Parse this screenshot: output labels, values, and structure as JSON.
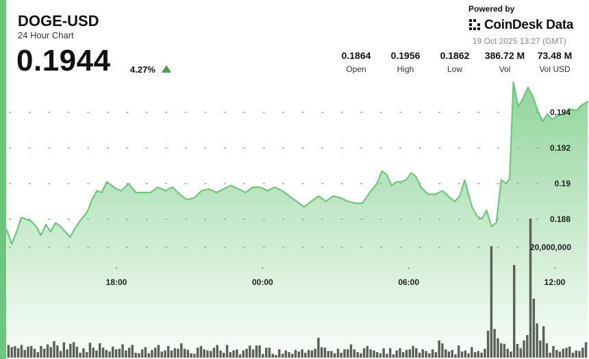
{
  "header": {
    "ticker": "DOGE-USD",
    "subtitle": "24 Hour Chart",
    "price": "0.1944",
    "change": "4.27%",
    "change_direction": "up"
  },
  "brand": {
    "powered_by": "Powered by",
    "name": "CoinDesk Data",
    "datetime": "19 Oct 2025 13:27 (GMT)"
  },
  "stats": [
    {
      "value": "0.1864",
      "label": "Open"
    },
    {
      "value": "0.1956",
      "label": "High"
    },
    {
      "value": "0.1862",
      "label": "Low"
    },
    {
      "value": "386.72 M",
      "label": "Vol"
    },
    {
      "value": "73.48 M",
      "label": "Vol USD"
    }
  ],
  "colors": {
    "accent": "#6cc77a",
    "line": "#6cc77a",
    "up": "#3fa34d",
    "volume": "#5a6157"
  },
  "chart_data": {
    "type": "line",
    "x_ticks": [
      "18:00",
      "00:00",
      "06:00",
      "12:00"
    ],
    "x_tick_hours": [
      18,
      24,
      30,
      36
    ],
    "x_range_hours": [
      13.5,
      37.35
    ],
    "y_ticks": [
      "0.194",
      "0.192",
      "0.19",
      "0.188"
    ],
    "y_tick_values": [
      0.194,
      0.192,
      0.19,
      0.188
    ],
    "ylim": [
      0.1858,
      0.1962
    ],
    "volume_label": "20,000,000",
    "volume_label_value": 20000000,
    "volume_max": 26000000,
    "grid": "dotted-horizontal",
    "series": [
      {
        "points": [
          [
            13.5,
            0.1874
          ],
          [
            13.7,
            0.1866
          ],
          [
            13.9,
            0.1873
          ],
          [
            14.1,
            0.1881
          ],
          [
            14.3,
            0.188
          ],
          [
            14.5,
            0.1879
          ],
          [
            14.7,
            0.1876
          ],
          [
            14.9,
            0.1871
          ],
          [
            15.1,
            0.1877
          ],
          [
            15.3,
            0.1873
          ],
          [
            15.5,
            0.1878
          ],
          [
            15.7,
            0.1876
          ],
          [
            15.9,
            0.1873
          ],
          [
            16.1,
            0.187
          ],
          [
            16.3,
            0.1875
          ],
          [
            16.5,
            0.1879
          ],
          [
            16.8,
            0.1884
          ],
          [
            17.0,
            0.1891
          ],
          [
            17.2,
            0.1896
          ],
          [
            17.4,
            0.1895
          ],
          [
            17.6,
            0.1901
          ],
          [
            17.8,
            0.1899
          ],
          [
            18.0,
            0.1897
          ],
          [
            18.2,
            0.1896
          ],
          [
            18.5,
            0.19
          ],
          [
            18.8,
            0.1895
          ],
          [
            19.1,
            0.1895
          ],
          [
            19.4,
            0.1895
          ],
          [
            19.7,
            0.1898
          ],
          [
            20.0,
            0.1896
          ],
          [
            20.3,
            0.1898
          ],
          [
            20.6,
            0.1894
          ],
          [
            20.9,
            0.1891
          ],
          [
            21.2,
            0.1892
          ],
          [
            21.5,
            0.1896
          ],
          [
            21.8,
            0.1897
          ],
          [
            22.1,
            0.1895
          ],
          [
            22.4,
            0.1897
          ],
          [
            22.7,
            0.1899
          ],
          [
            23.0,
            0.1897
          ],
          [
            23.3,
            0.1895
          ],
          [
            23.6,
            0.1898
          ],
          [
            23.9,
            0.1898
          ],
          [
            24.2,
            0.1896
          ],
          [
            24.5,
            0.1898
          ],
          [
            24.8,
            0.1896
          ],
          [
            25.1,
            0.1893
          ],
          [
            25.4,
            0.189
          ],
          [
            25.7,
            0.1887
          ],
          [
            26.0,
            0.189
          ],
          [
            26.3,
            0.1893
          ],
          [
            26.6,
            0.189
          ],
          [
            26.9,
            0.1893
          ],
          [
            27.2,
            0.1892
          ],
          [
            27.5,
            0.189
          ],
          [
            27.8,
            0.1889
          ],
          [
            28.1,
            0.1889
          ],
          [
            28.4,
            0.1895
          ],
          [
            28.7,
            0.19
          ],
          [
            28.9,
            0.1907
          ],
          [
            29.1,
            0.1905
          ],
          [
            29.3,
            0.1899
          ],
          [
            29.5,
            0.1901
          ],
          [
            29.7,
            0.1901
          ],
          [
            29.9,
            0.1902
          ],
          [
            30.1,
            0.1906
          ],
          [
            30.3,
            0.1904
          ],
          [
            30.5,
            0.1898
          ],
          [
            30.8,
            0.1894
          ],
          [
            31.1,
            0.1894
          ],
          [
            31.4,
            0.1896
          ],
          [
            31.7,
            0.1892
          ],
          [
            31.9,
            0.189
          ],
          [
            32.1,
            0.1893
          ],
          [
            32.3,
            0.1902
          ],
          [
            32.6,
            0.1887
          ],
          [
            32.8,
            0.1882
          ],
          [
            33.0,
            0.188
          ],
          [
            33.2,
            0.1885
          ],
          [
            33.4,
            0.1876
          ],
          [
            33.6,
            0.1878
          ],
          [
            33.8,
            0.1902
          ],
          [
            34.0,
            0.19
          ],
          [
            34.15,
            0.1903
          ],
          [
            34.3,
            0.1957
          ],
          [
            34.5,
            0.1943
          ],
          [
            34.7,
            0.1948
          ],
          [
            34.9,
            0.1954
          ],
          [
            35.1,
            0.1949
          ],
          [
            35.3,
            0.1941
          ],
          [
            35.5,
            0.1935
          ],
          [
            35.7,
            0.1939
          ],
          [
            35.9,
            0.1936
          ],
          [
            36.1,
            0.1938
          ],
          [
            36.3,
            0.1939
          ],
          [
            36.6,
            0.1942
          ],
          [
            36.9,
            0.1941
          ],
          [
            37.1,
            0.1944
          ],
          [
            37.35,
            0.1946
          ]
        ]
      }
    ],
    "volume": [
      2.3,
      1.9,
      2.1,
      1.7,
      2.3,
      1.4,
      2.0,
      2.1,
      1.6,
      1.0,
      2.1,
      1.6,
      2.4,
      1.9,
      3.0,
      2.2,
      1.2,
      2.8,
      1.5,
      2.5,
      2.8,
      2.0,
      0.9,
      1.7,
      1.0,
      2.7,
      1.8,
      1.3,
      2.6,
      1.8,
      1.4,
      1.1,
      2.0,
      1.5,
      1.6,
      2.4,
      1.3,
      1.8,
      2.3,
      0.9,
      0.8,
      1.5,
      1.9,
      0.8,
      1.4,
      1.8,
      2.3,
      1.1,
      1.3,
      2.1,
      1.3,
      1.7,
      1.6,
      2.6,
      1.6,
      1.4,
      0.8,
      0.7,
      1.8,
      2.1,
      1.5,
      1.3,
      1.2,
      1.8,
      2.3,
      1.3,
      0.9,
      2.3,
      1.0,
      1.3,
      1.5,
      0.6,
      1.3,
      1.6,
      2.2,
      1.5,
      2.2,
      2.2,
      0.7,
      1.8,
      1.8,
      0.7,
      0.5,
      1.5,
      0.7,
      1.3,
      1.0,
      0.7,
      1.4,
      1.1,
      1.5,
      0.9,
      1.4,
      1.3,
      1.6,
      3.6,
      1.9,
      1.8,
      1.2,
      1.2,
      0.8,
      1.6,
      0.9,
      1.5,
      1.5,
      2.4,
      1.5,
      1.0,
      0.8,
      1.7,
      2.1,
      1.5,
      1.3,
      1.0,
      0.8,
      1.7,
      0.7,
      1.7,
      0.6,
      1.3,
      1.7,
      1.0,
      1.4,
      1.5,
      2.1,
      1.7,
      0.9,
      1.5,
      1.2,
      0.8,
      1.5,
      1.0,
      3.1,
      2.6,
      1.5,
      1.1,
      1.4,
      0.6,
      2.2,
      1.1,
      1.3,
      0.8,
      1.9,
      1.0,
      1.2,
      0.9,
      1.6,
      4.9,
      20.2,
      5.2,
      3.5,
      2.6,
      2.5,
      1.6,
      1.1,
      16.8,
      2.5,
      1.7,
      3.1,
      4.1,
      25.2,
      10.7,
      6.2,
      3.1,
      5.7,
      2.6,
      0.9,
      2.1,
      1.4,
      1.1,
      1.6,
      1.8,
      2.0,
      0.9,
      1.3,
      1.2,
      1.8,
      2.8
    ]
  }
}
